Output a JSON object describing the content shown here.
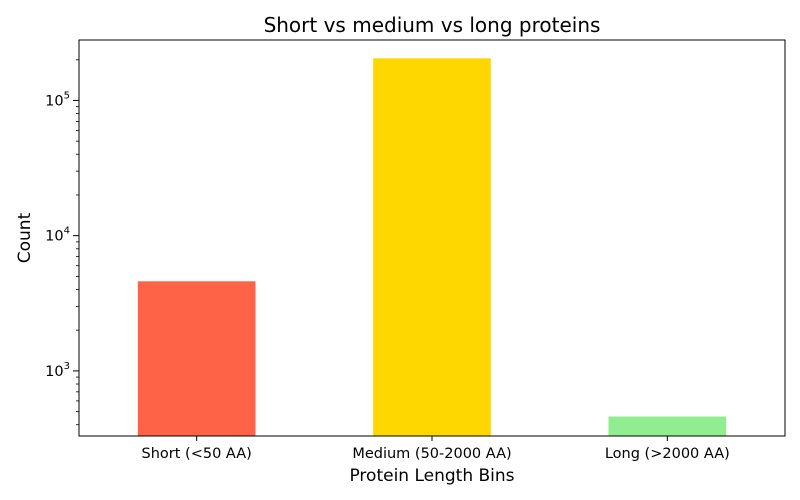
{
  "chart_data": {
    "type": "bar",
    "title": "Short vs medium vs long proteins",
    "xlabel": "Protein Length Bins",
    "ylabel": "Count",
    "yscale": "log",
    "ylim": [
      330,
      280000
    ],
    "grid": false,
    "categories": [
      "Short (<50 AA)",
      "Medium (50-2000 AA)",
      "Long (>2000 AA)"
    ],
    "values": [
      4600,
      205000,
      460
    ],
    "colors": [
      "#ff6347",
      "#ffd700",
      "#90ee90"
    ],
    "y_ticks": [
      {
        "value": 1000,
        "base": "10",
        "exp": "3"
      },
      {
        "value": 10000,
        "base": "10",
        "exp": "4"
      },
      {
        "value": 100000,
        "base": "10",
        "exp": "5"
      }
    ]
  }
}
